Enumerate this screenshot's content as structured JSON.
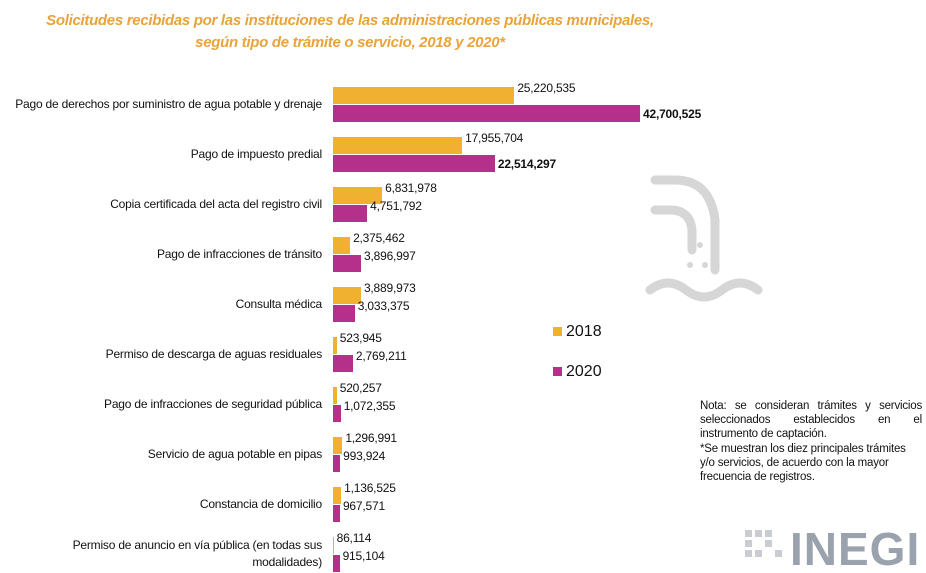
{
  "chart_data": {
    "type": "bar",
    "title": "Solicitudes recibidas por las instituciones de las administraciones públicas municipales, según tipo de trámite o servicio, 2018 y 2020*",
    "categories": [
      "Pago de derechos por suministro de agua potable y drenaje",
      "Pago de impuesto predial",
      "Copia certificada del acta del registro civil",
      "Pago de infracciones de tránsito",
      "Consulta médica",
      "Permiso de descarga de aguas residuales",
      "Pago de infracciones de seguridad pública",
      "Servicio de agua potable en pipas",
      "Constancia de domicilio",
      "Permiso de anuncio en vía pública (en todas sus modalidades)"
    ],
    "series": [
      {
        "name": "2018",
        "color": "#efb12f",
        "values": [
          25220535,
          17955704,
          6831978,
          2375462,
          3889973,
          523945,
          520257,
          1296991,
          1136525,
          86114
        ],
        "value_labels": [
          "25,220,535",
          "17,955,704",
          "6,831,978",
          "2,375,462",
          "3,889,973",
          "523,945",
          "520,257",
          "1,296,991",
          "1,136,525",
          "86,114"
        ]
      },
      {
        "name": "2020",
        "color": "#b5308b",
        "values": [
          42700525,
          22514297,
          4751792,
          3896997,
          3033375,
          2769211,
          1072355,
          993924,
          967571,
          915104
        ],
        "value_labels": [
          "42,700,525",
          "22,514,297",
          "4,751,792",
          "3,896,997",
          "3,033,375",
          "2,769,211",
          "1,072,355",
          "993,924",
          "967,571",
          "915,104"
        ]
      }
    ],
    "notes": [
      "Nota: se consideran trámites y servicios seleccionados establecidos en el instrumento de captación.",
      "*Se muestran los diez principales trámites y/o servicios, de acuerdo con la mayor frecuencia de registros."
    ],
    "logo": "INEGI"
  }
}
